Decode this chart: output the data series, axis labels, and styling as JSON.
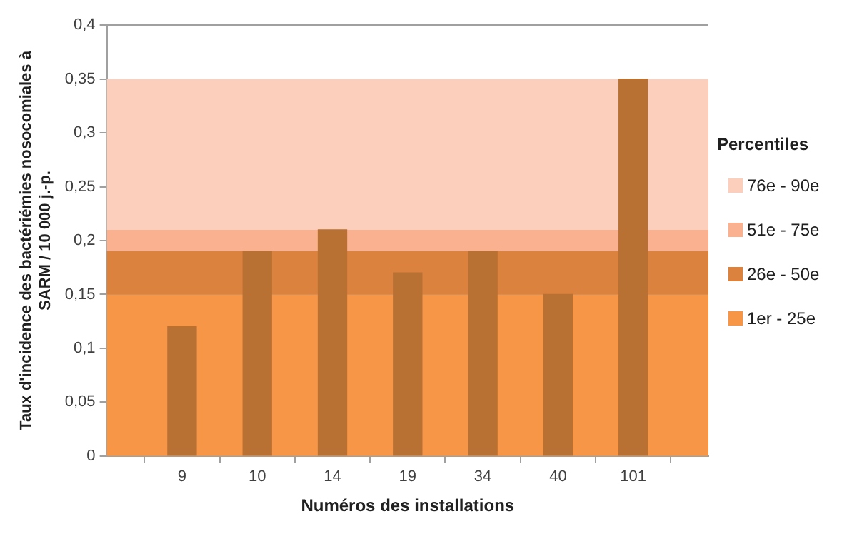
{
  "chart_data": {
    "type": "bar",
    "xlabel": "Numéros des installations",
    "ylabel": "Taux d'incidence des bactériémies nosocomiales à SARM / 10 000 j.-p.",
    "legend_title": "Percentiles",
    "categories": [
      "9",
      "10",
      "14",
      "19",
      "34",
      "40",
      "101"
    ],
    "values": [
      0.12,
      0.19,
      0.21,
      0.17,
      0.19,
      0.15,
      0.35
    ],
    "color": "#b87033",
    "ylim": [
      0,
      0.4
    ],
    "yticks": [
      0,
      {
        "value": 0.05,
        "label": "0,05"
      },
      {
        "value": 0.1,
        "label": "0,1"
      },
      {
        "value": 0.15,
        "label": "0,15"
      },
      {
        "value": 0.2,
        "label": "0,2"
      },
      {
        "value": 0.25,
        "label": "0,25"
      },
      {
        "value": 0.3,
        "label": "0,3"
      },
      {
        "value": 0.35,
        "label": "0,35"
      },
      {
        "value": 0.4,
        "label": "0,4"
      }
    ],
    "bands": [
      {
        "axis": "y",
        "from": 0,
        "to": 0.15,
        "label": "1er - 25e",
        "color": "#f79646"
      },
      {
        "axis": "y",
        "from": 0.15,
        "to": 0.19,
        "label": "26e - 50e",
        "color": "#dc823f"
      },
      {
        "axis": "y",
        "from": 0.19,
        "to": 0.21,
        "label": "51e - 75e",
        "color": "#f9b18f"
      },
      {
        "axis": "y",
        "from": 0.21,
        "to": 0.35,
        "label": "76e - 90e",
        "color": "#fbcfbb"
      }
    ],
    "grid": "y",
    "legend": "right"
  }
}
